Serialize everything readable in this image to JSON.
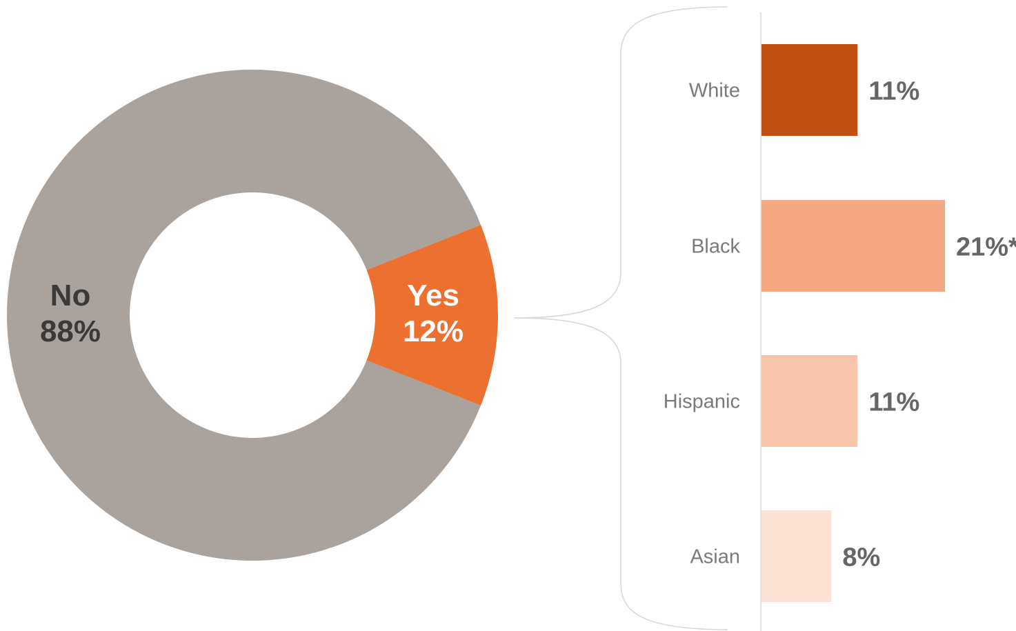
{
  "chart_data": [
    {
      "type": "pie",
      "donut": true,
      "slices": [
        {
          "label": "No",
          "value": 88,
          "value_label": "88%",
          "color": "#aaa29c",
          "text_color": "#3a3a3a"
        },
        {
          "label": "Yes",
          "value": 12,
          "value_label": "12%",
          "color": "#ec7030",
          "text_color": "#ffffff"
        }
      ]
    },
    {
      "type": "bar",
      "orientation": "horizontal",
      "categories": [
        "White",
        "Black",
        "Hispanic",
        "Asian"
      ],
      "values": [
        11,
        21,
        11,
        8
      ],
      "value_labels": [
        "11%",
        "21%*",
        "11%",
        "8%"
      ],
      "colors": [
        "#c15012",
        "#f4a984",
        "#f7c5aa",
        "#fbe2d4"
      ],
      "grid": false
    }
  ]
}
